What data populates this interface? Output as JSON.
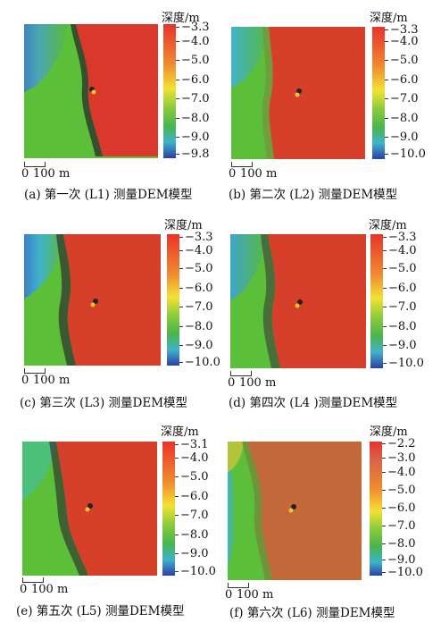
{
  "panels": [
    {
      "id": "L1",
      "caption": "(a) 第一次 (L1) 测量DEM模型",
      "legend_title": "深度/m",
      "ticks": [
        "−3.3",
        "−4.0",
        "−5.0",
        "−6.0",
        "−7.0",
        "−8.0",
        "−9.0",
        "−9.8"
      ],
      "scale_label_0": "0",
      "scale_label_1": "100 m"
    },
    {
      "id": "L2",
      "caption": "(b) 第二次 (L2) 测量DEM模型",
      "legend_title": "深度/m",
      "ticks": [
        "−3.3",
        "−4.0",
        "−5.0",
        "−6.0",
        "−7.0",
        "−8.0",
        "−9.0",
        "−10.0"
      ],
      "scale_label_0": "0",
      "scale_label_1": "100 m"
    },
    {
      "id": "L3",
      "caption": "(c) 第三次 (L3) 测量DEM模型",
      "legend_title": "深度/m",
      "ticks": [
        "−3.3",
        "−4.0",
        "−5.0",
        "−6.0",
        "−7.0",
        "−8.0",
        "−9.0",
        "−10.0"
      ],
      "scale_label_0": "0",
      "scale_label_1": "100 m"
    },
    {
      "id": "L4",
      "caption": "(d) 第四次 (L4 )测量DEM模型",
      "legend_title": "深度/m",
      "ticks": [
        "−3.3",
        "−4.0",
        "−5.0",
        "−6.0",
        "−7.0",
        "−8.0",
        "−9.0",
        "−10.0"
      ],
      "scale_label_0": "0",
      "scale_label_1": "100 m"
    },
    {
      "id": "L5",
      "caption": "(e) 第五次 (L5) 测量DEM模型",
      "legend_title": "深度/m",
      "ticks": [
        "−3.1",
        "−4.0",
        "−5.0",
        "−6.0",
        "−7.0",
        "−8.0",
        "−9.0",
        "−10.0"
      ],
      "scale_label_0": "0",
      "scale_label_1": "100 m"
    },
    {
      "id": "L6",
      "caption": "(f) 第六次 (L6) 测量DEM模型",
      "legend_title": "深度/m",
      "ticks": [
        "−2.2",
        "−3.0",
        "−4.0",
        "−5.0",
        "−6.0",
        "−7.0",
        "−8.0",
        "−9.0",
        "−10.0"
      ],
      "scale_label_0": "0",
      "scale_label_1": "100 m"
    }
  ],
  "colors": {
    "shallow_red": "#d73027",
    "orange": "#f39c32",
    "yellow": "#f2e233",
    "green": "#5cbf3a",
    "cyan": "#3fb3c9",
    "deep_blue": "#2c3fa8"
  }
}
